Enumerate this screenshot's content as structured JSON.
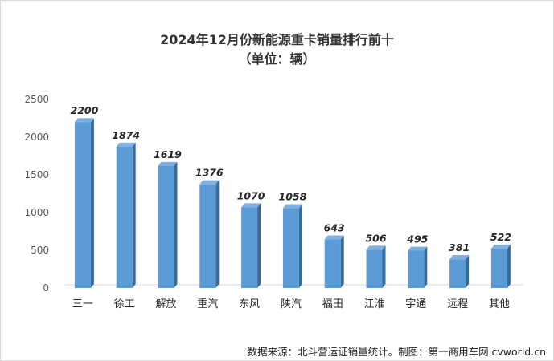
{
  "chart_data": {
    "type": "bar",
    "title": "2024年12月份新能源重卡销量排行前十",
    "subtitle": "（单位：辆）",
    "categories": [
      "三一",
      "徐工",
      "解放",
      "重汽",
      "东风",
      "陕汽",
      "福田",
      "江淮",
      "宇通",
      "远程",
      "其他"
    ],
    "values": [
      2200,
      1874,
      1619,
      1376,
      1070,
      1058,
      643,
      506,
      495,
      381,
      522
    ],
    "ylim": [
      0,
      2500
    ],
    "yticks": [
      0,
      500,
      1000,
      1500,
      2000,
      2500
    ],
    "grid": false,
    "legend": "none",
    "bar_color": "#5b9bd5",
    "bar_side_color": "#3a6a96",
    "bar_top_color": "#7fb0df"
  },
  "source": "数据来源：北斗营运证销量统计。制图：第一商用车网 cvworld.cn"
}
